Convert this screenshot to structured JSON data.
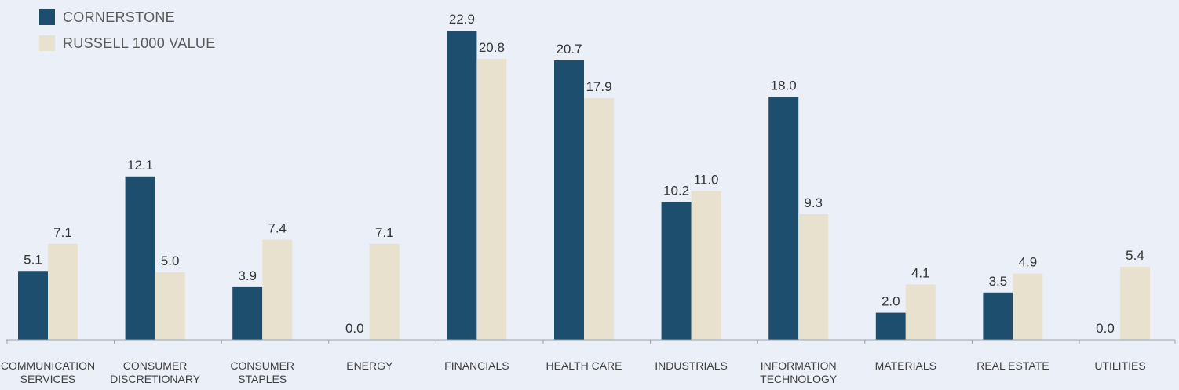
{
  "chart_data": {
    "type": "bar",
    "categories": [
      [
        "COMMUNICATION",
        "SERVICES"
      ],
      [
        "CONSUMER",
        "DISCRETIONARY"
      ],
      [
        "CONSUMER",
        "STAPLES"
      ],
      [
        "ENERGY"
      ],
      [
        "FINANCIALS"
      ],
      [
        "HEALTH CARE"
      ],
      [
        "INDUSTRIALS"
      ],
      [
        "INFORMATION",
        "TECHNOLOGY"
      ],
      [
        "MATERIALS"
      ],
      [
        "REAL ESTATE"
      ],
      [
        "UTILITIES"
      ]
    ],
    "series": [
      {
        "name": "CORNERSTONE",
        "color": "#1e4e6e",
        "values": [
          5.1,
          12.1,
          3.9,
          0.0,
          22.9,
          20.7,
          10.2,
          18.0,
          2.0,
          3.5,
          0.0
        ]
      },
      {
        "name": "RUSSELL 1000 VALUE",
        "color": "#e8e1cd",
        "values": [
          7.1,
          5.0,
          7.4,
          7.1,
          20.8,
          17.9,
          11.0,
          9.3,
          4.1,
          4.9,
          5.4
        ]
      }
    ],
    "value_format": "one-decimal",
    "ylim": [
      0,
      23
    ],
    "grid": false,
    "legend_position": "top-left"
  }
}
